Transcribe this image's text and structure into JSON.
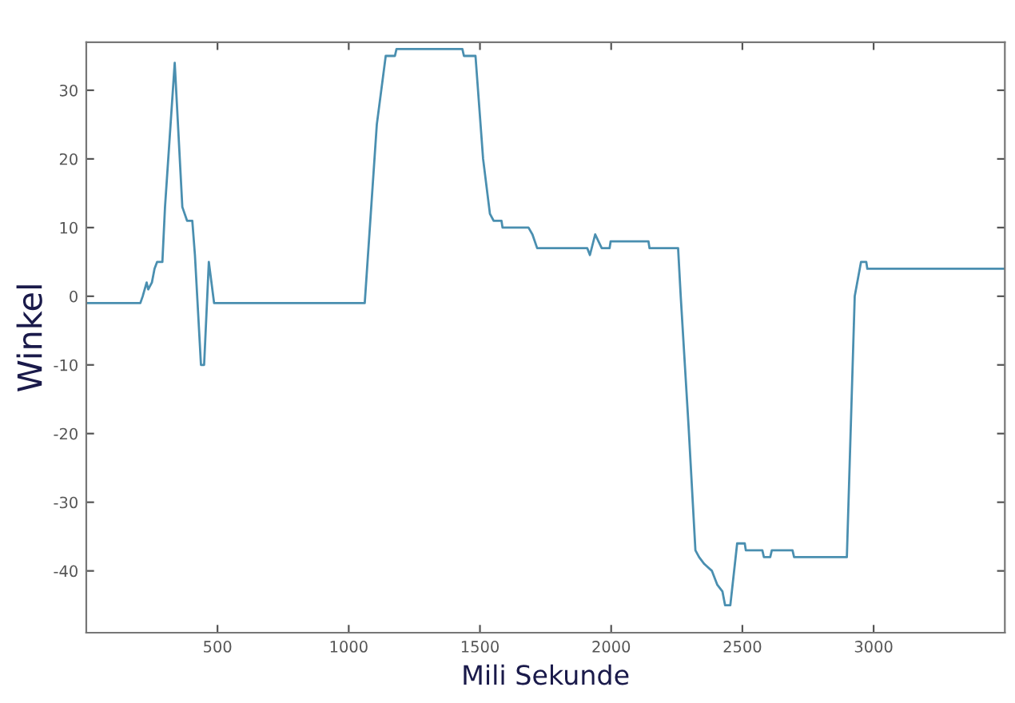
{
  "chart_data": {
    "type": "line",
    "xlabel": "Mili Sekunde",
    "ylabel": "Winkel",
    "xlim": [
      0,
      3500
    ],
    "ylim": [
      -49,
      37
    ],
    "xticks": [
      500,
      1000,
      1500,
      2000,
      2500,
      3000
    ],
    "yticks": [
      -40,
      -30,
      -20,
      -10,
      0,
      10,
      20,
      30
    ],
    "grid": false,
    "legend": false,
    "series": [
      {
        "color": "#4a8fb0",
        "x": [
          0,
          206,
          215,
          230,
          236,
          250,
          260,
          270,
          290,
          300,
          337,
          366,
          384,
          404,
          414,
          437,
          449,
          467,
          487,
          1061,
          1107,
          1141,
          1176,
          1182,
          1433,
          1439,
          1483,
          1512,
          1538,
          1552,
          1582,
          1586,
          1685,
          1700,
          1718,
          1909,
          1919,
          1939,
          1964,
          1994,
          1998,
          2142,
          2146,
          2255,
          2265,
          2295,
          2321,
          2335,
          2355,
          2384,
          2404,
          2424,
          2434,
          2454,
          2480,
          2509,
          2513,
          2576,
          2582,
          2606,
          2612,
          2691,
          2697,
          2898,
          2928,
          2952,
          2972,
          2976,
          3500
        ],
        "values": [
          -1,
          -1,
          0,
          2,
          1,
          2,
          4,
          5,
          5,
          13,
          34,
          13,
          11,
          11,
          6,
          -10,
          -10,
          5,
          -1,
          -1,
          25,
          35,
          35,
          36,
          36,
          35,
          35,
          20,
          12,
          11,
          11,
          10,
          10,
          9,
          7,
          7,
          6,
          9,
          7,
          7,
          8,
          8,
          7,
          7,
          0,
          -19,
          -37,
          -38,
          -39,
          -40,
          -42,
          -43,
          -45,
          -45,
          -36,
          -36,
          -37,
          -37,
          -38,
          -38,
          -37,
          -37,
          -38,
          -38,
          0,
          5,
          5,
          4,
          4
        ]
      }
    ]
  }
}
